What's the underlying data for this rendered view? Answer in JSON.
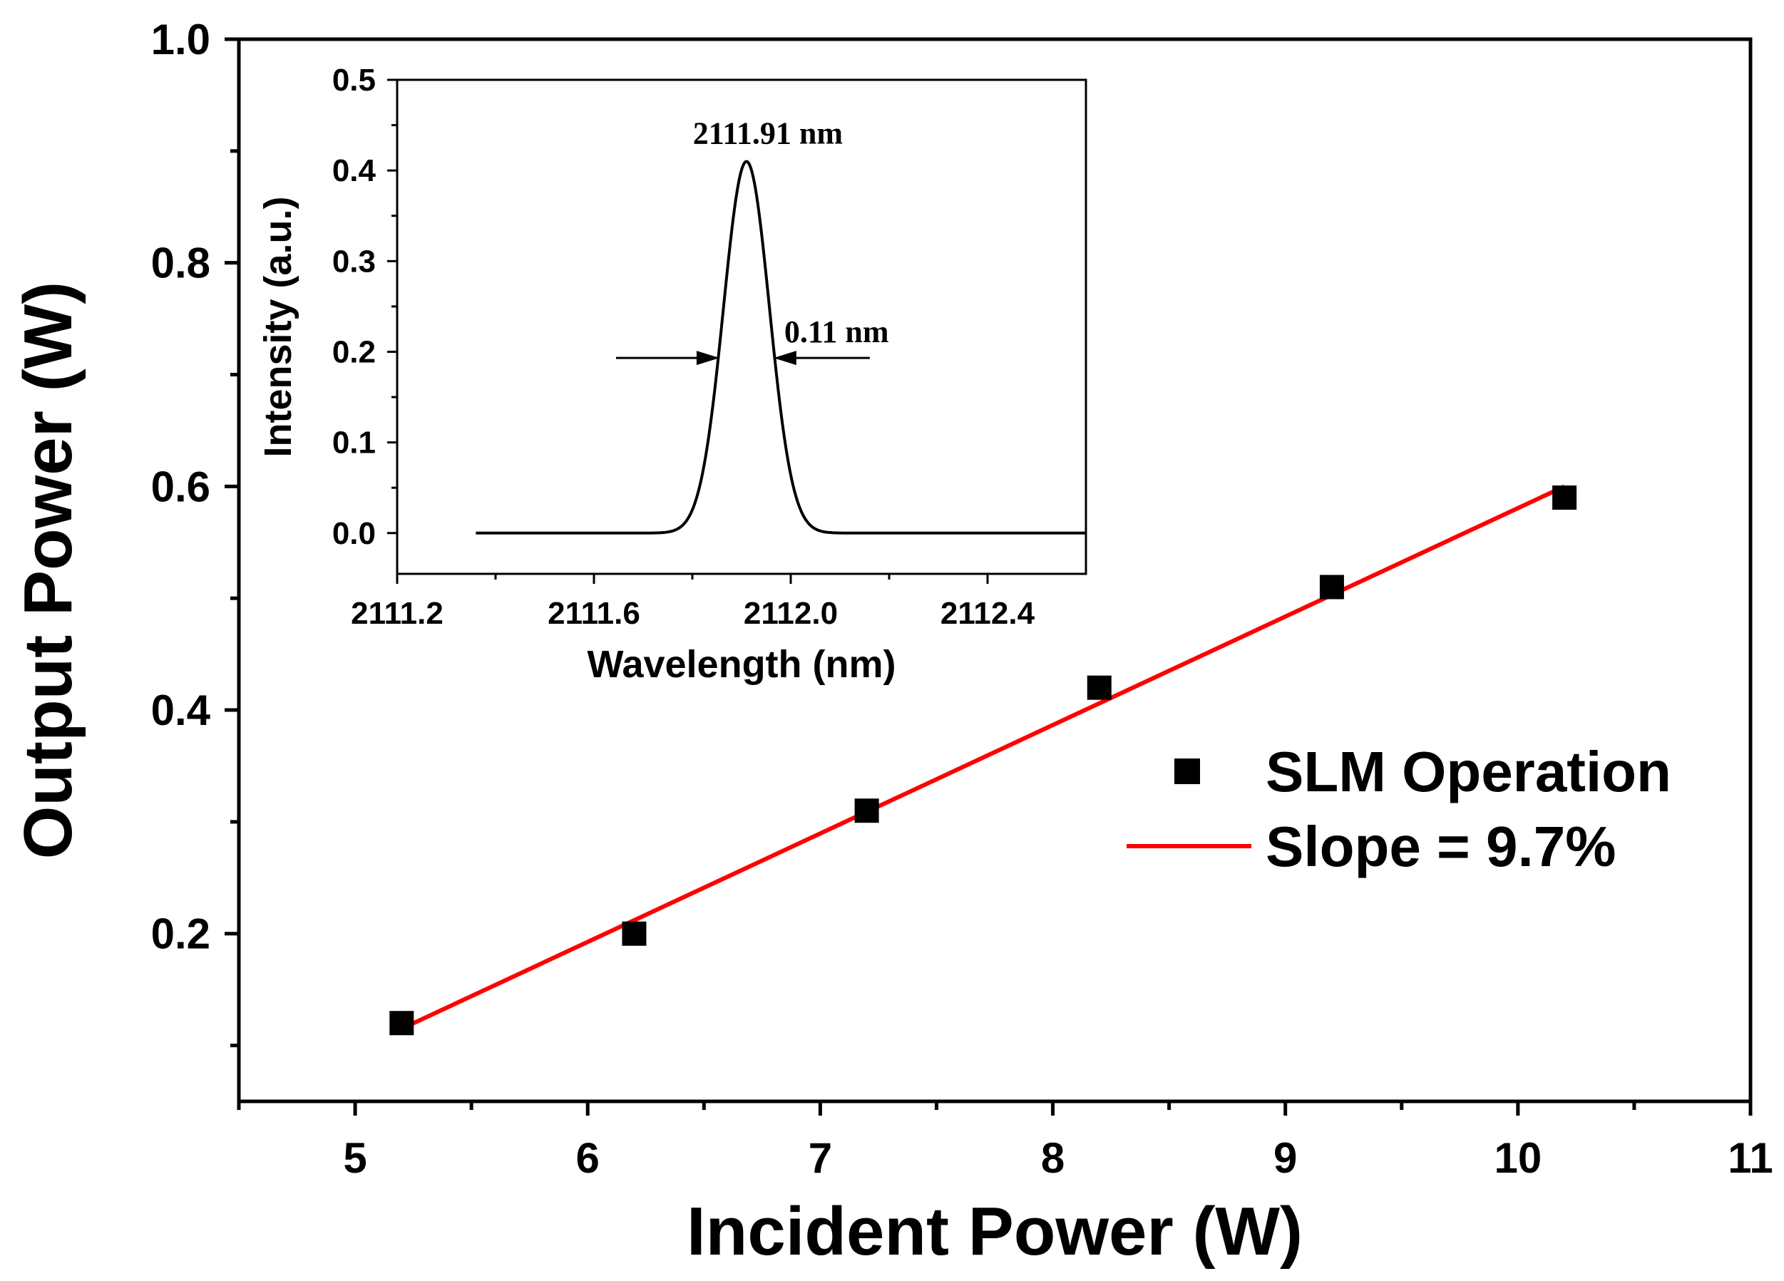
{
  "chart_data": [
    {
      "type": "scatter",
      "title": "",
      "xlabel": "Incident Power (W)",
      "ylabel": "Output Power (W)",
      "xlim": [
        4.5,
        11
      ],
      "ylim": [
        0.05,
        1.0
      ],
      "xticks": [
        "5",
        "6",
        "7",
        "8",
        "9",
        "10",
        "11"
      ],
      "yticks": [
        "0.2",
        "0.4",
        "0.6",
        "0.8",
        "1.0"
      ],
      "grid": false,
      "legend_position": "center-right",
      "series": [
        {
          "name": "SLM Operation",
          "kind": "scatter",
          "marker": "square",
          "color": "#000000",
          "x": [
            5.2,
            6.2,
            7.2,
            8.2,
            9.2,
            10.2
          ],
          "y": [
            0.12,
            0.2,
            0.31,
            0.42,
            0.51,
            0.59
          ]
        },
        {
          "name": "Slope = 9.7%",
          "kind": "line",
          "color": "#ff0000",
          "x": [
            5.2,
            10.2
          ],
          "y": [
            0.115,
            0.6
          ]
        }
      ]
    },
    {
      "type": "line",
      "title": "",
      "xlabel": "Wavelength (nm)",
      "ylabel": "Intensity (a.u.)",
      "xlim": [
        2111.2,
        2112.6
      ],
      "ylim": [
        -0.045,
        0.5
      ],
      "xticks": [
        "2111.2",
        "2111.6",
        "2112.0",
        "2112.4"
      ],
      "yticks": [
        "0.0",
        "0.1",
        "0.2",
        "0.3",
        "0.4",
        "0.5"
      ],
      "series": [
        {
          "name": "spectrum",
          "color": "#000000",
          "peak_wavelength": 2111.91,
          "peak_intensity": 0.41,
          "fwhm": 0.11,
          "baseline": 0.0,
          "x_start": 2111.36,
          "x_end": 2112.6
        }
      ],
      "annotations": [
        {
          "text": "2111.91 nm",
          "target": "peak"
        },
        {
          "text": "0.11 nm",
          "target": "fwhm"
        }
      ]
    }
  ]
}
